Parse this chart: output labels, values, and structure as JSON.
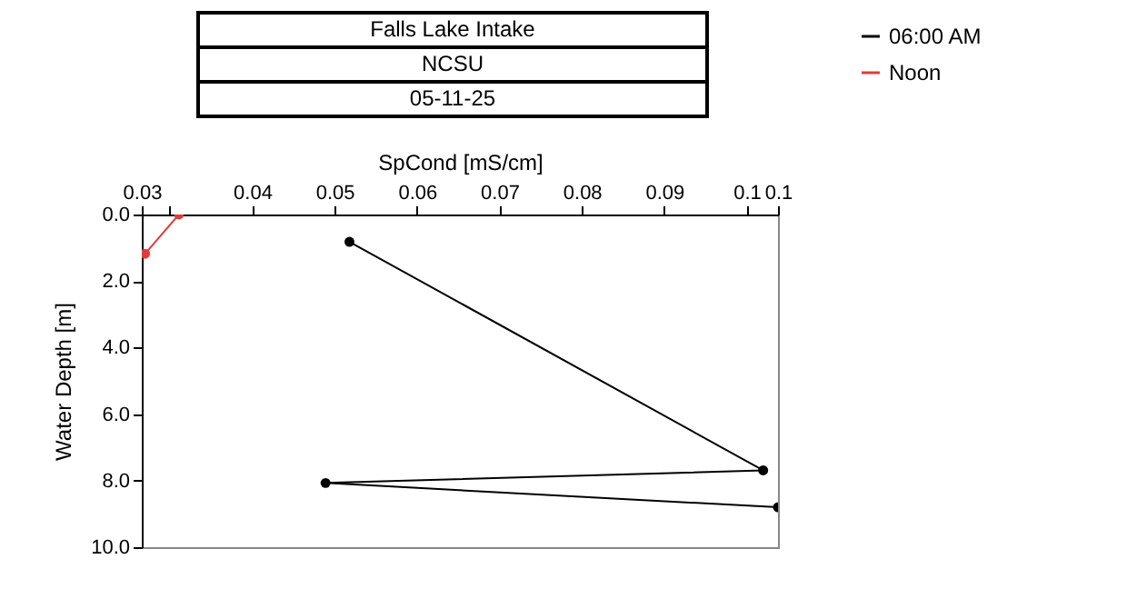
{
  "chart_data": {
    "type": "line",
    "title": "Falls Lake Intake",
    "subtitle": "NCSU",
    "annotations": [
      "05-11-25"
    ],
    "xlabel": "SpCond [mS/cm]",
    "ylabel": "Water Depth [m]",
    "xlim": [
      0.0266,
      0.1038
    ],
    "xticks": [
      {
        "value": 0.0266,
        "label": "0.03"
      },
      {
        "value": 0.03,
        "label": null
      },
      0.04,
      0.05,
      0.06,
      0.07,
      0.08,
      0.09,
      0.1,
      {
        "value": 0.1038,
        "label": "0.1"
      }
    ],
    "ylim": [
      10,
      0
    ],
    "yticks": [
      {
        "value": 0,
        "label": "0.0"
      },
      {
        "value": 2,
        "label": "2.0"
      },
      {
        "value": 4,
        "label": "4.0"
      },
      {
        "value": 6,
        "label": "6.0"
      },
      {
        "value": 8,
        "label": "8.0"
      },
      {
        "value": 10,
        "label": "10.0"
      }
    ],
    "series": [
      {
        "name": "06:00 AM",
        "color": "#000000",
        "x": [
          0.0518,
          0.102,
          0.0489,
          0.1038
        ],
        "values": [
          0.82,
          7.69,
          8.07,
          8.8
        ]
      },
      {
        "name": "Noon",
        "color": "#e03a3a",
        "x": [
          0.0311,
          0.027
        ],
        "values": [
          0.0,
          1.18
        ]
      }
    ],
    "marker": "circle",
    "line_style": "solid",
    "grid": false,
    "legend": "top right"
  }
}
